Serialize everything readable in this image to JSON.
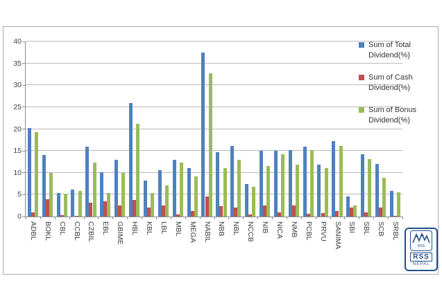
{
  "chart_data": {
    "type": "bar",
    "title": "",
    "categories": [
      "ADBL",
      "BOKL",
      "CBL",
      "CCBL",
      "CZBIL",
      "EBL",
      "GBIME",
      "HBL",
      "KBL",
      "LBL",
      "MBL",
      "MEGA",
      "NABIL",
      "NBB",
      "NBL",
      "NCCB",
      "NIB",
      "NICA",
      "NMB",
      "PCBL",
      "PRVU",
      "SANIMA",
      "SBI",
      "SBL",
      "SCB",
      "SRBL"
    ],
    "series": [
      {
        "name": "Sum of Total Dividend(%)",
        "color": "#4f81bd",
        "values": [
          20.3,
          14,
          5.3,
          6.1,
          16,
          10.2,
          13,
          26,
          8.2,
          10.6,
          13,
          11.1,
          37.4,
          14.7,
          16.2,
          7.5,
          15.1,
          15.1,
          15.2,
          15.9,
          11.9,
          17.2,
          4.6,
          14.3,
          12,
          5.9
        ]
      },
      {
        "name": "Sum of Cash Dividend(%)",
        "color": "#c0504d",
        "values": [
          1,
          4,
          0.3,
          0.2,
          3.1,
          3.5,
          2.5,
          3.8,
          2,
          2.6,
          0.4,
          1.2,
          4.6,
          2.4,
          2.1,
          0.5,
          2.5,
          0.9,
          2.6,
          0.7,
          0.8,
          1.2,
          2,
          0.9,
          2,
          0.2
        ]
      },
      {
        "name": "Sum of Bonus Dividend(%)",
        "color": "#9bbb59",
        "values": [
          19.3,
          10,
          5,
          5.9,
          12.3,
          5.3,
          10,
          21.2,
          5.4,
          7.1,
          12.4,
          9.2,
          32.8,
          11.1,
          12.9,
          6.8,
          11.6,
          14.2,
          11.8,
          15.2,
          11.1,
          16.2,
          2.6,
          13.2,
          8.8,
          5.5
        ]
      }
    ],
    "ylim": [
      0,
      40
    ],
    "ytick_step": 5,
    "yticks": [
      "0",
      "5",
      "10",
      "15",
      "20",
      "25",
      "30",
      "35",
      "40"
    ],
    "grid": true,
    "legend_position": "right-overlay",
    "xlabel": "",
    "ylabel": ""
  },
  "legend": {
    "entries": [
      {
        "line1": "Sum of Total",
        "line2": "Dividend(%)",
        "color": "#4f81bd"
      },
      {
        "line1": "Sum of Cash",
        "line2": "Dividend(%)",
        "color": "#c0504d"
      },
      {
        "line1": "Sum of Bonus",
        "line2": "Dividend(%)",
        "color": "#9bbb59"
      }
    ]
  },
  "logo": {
    "emblem_caption": "RSS",
    "title": "RSS",
    "subtitle": "NEPAL"
  },
  "colors": {
    "total": "#4f81bd",
    "cash": "#c0504d",
    "bonus": "#9bbb59",
    "gridline": "#b9b9b9",
    "axis": "#8c8c8c",
    "chart_border": "#a9a9a9",
    "logo_blue": "#1f4e8c"
  }
}
